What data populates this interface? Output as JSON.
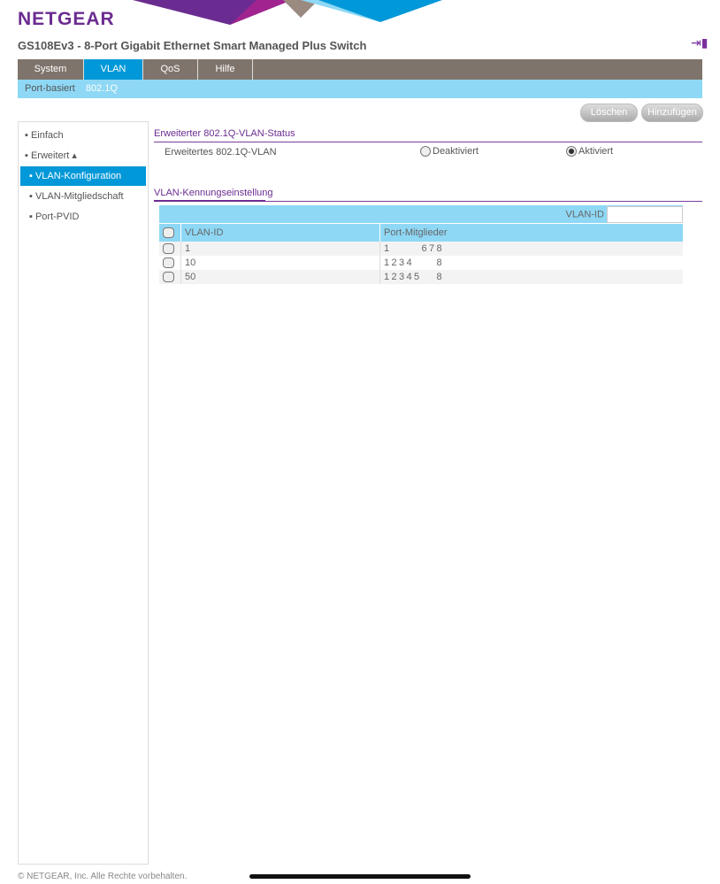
{
  "brand": {
    "logo": "NETGEAR",
    "colors": {
      "purple": "#6b2c91",
      "blue": "#0098d8",
      "lightblue": "#8ed8f5",
      "gray": "#7f746b"
    }
  },
  "header": {
    "title": "GS108Ev3 - 8-Port Gigabit Ethernet Smart Managed Plus Switch",
    "logout_icon": "logout-icon"
  },
  "nav": {
    "tabs": [
      "System",
      "VLAN",
      "QoS",
      "Hilfe"
    ],
    "active": "VLAN"
  },
  "subnav": {
    "items": [
      "Port-basiert",
      "802.1Q"
    ],
    "active": "802.1Q"
  },
  "buttons": {
    "delete": "Löschen",
    "add": "Hinzufügen"
  },
  "sidebar": {
    "items": [
      "▪ Einfach",
      "▪ Erweitert ▴",
      "▪ VLAN-Konfiguration",
      "▪ VLAN-Mitgliedschaft",
      "▪ Port-PVID"
    ],
    "active": "▪ VLAN-Konfiguration"
  },
  "status": {
    "heading": "Erweiterter 802.1Q-VLAN-Status",
    "label": "Erweitertes 802.1Q-VLAN",
    "off": "Deaktiviert",
    "on": "Aktiviert",
    "selected": "on"
  },
  "vlan": {
    "heading": "VLAN-Kennungseinstellung",
    "id_label": "VLAN-ID",
    "id_value": "",
    "columns": [
      "VLAN-ID",
      "Port-Mitglieder"
    ],
    "rows": [
      {
        "id": "1",
        "members": [
          1,
          6,
          7,
          8
        ]
      },
      {
        "id": "10",
        "members": [
          1,
          2,
          3,
          4,
          8
        ]
      },
      {
        "id": "50",
        "members": [
          1,
          2,
          3,
          4,
          5,
          8
        ]
      }
    ]
  },
  "footer": "© NETGEAR, Inc. Alle Rechte vorbehalten."
}
